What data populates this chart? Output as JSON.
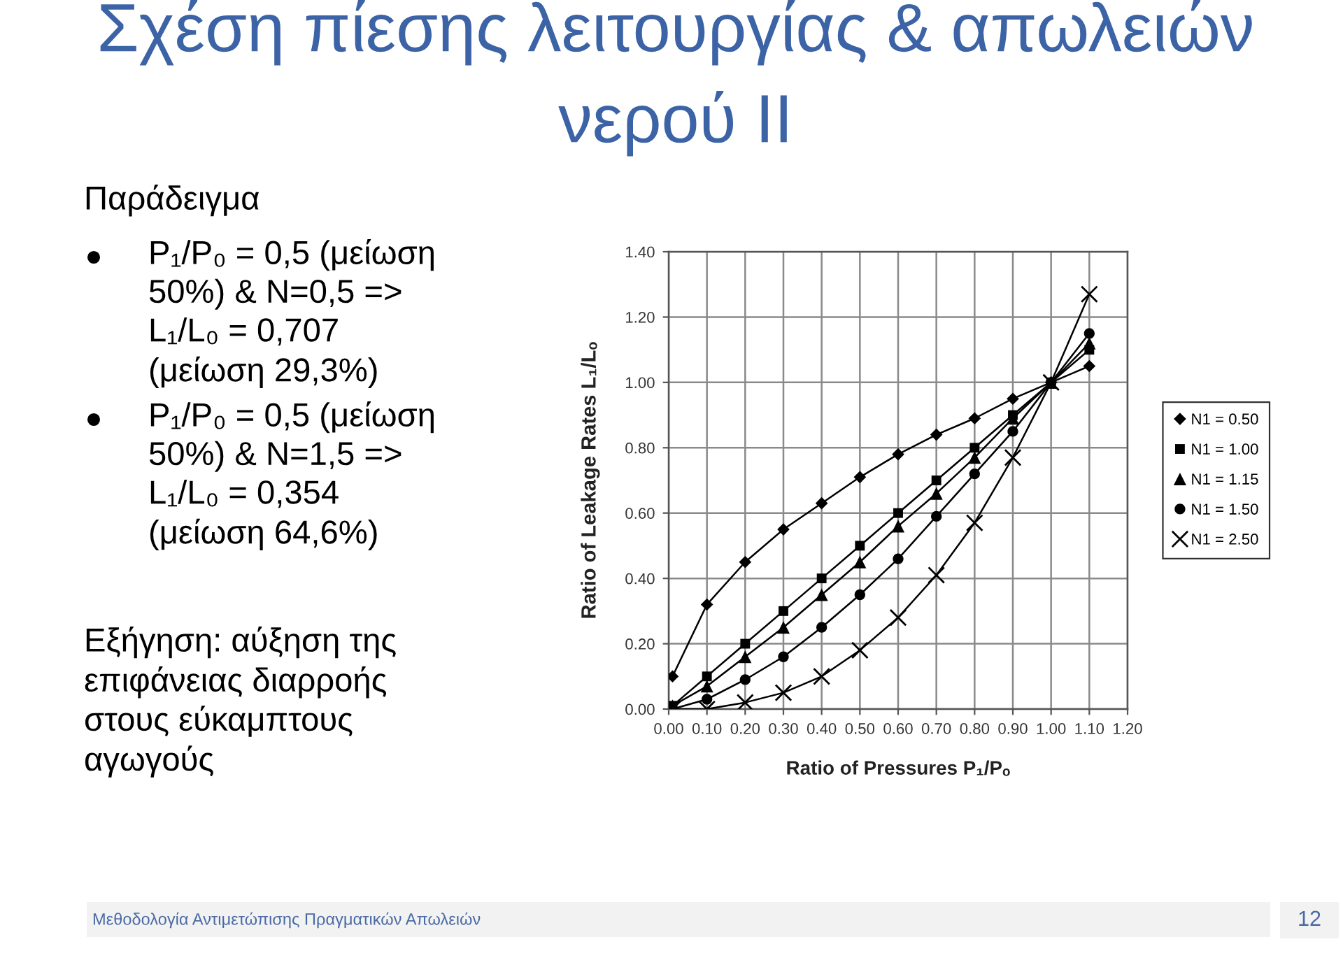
{
  "chart_data": {
    "type": "line",
    "title": "Σχέση πίεσης λειτουργίας & απωλειών νερού II",
    "xlabel": "Ratio of Pressures P₁/Pₒ",
    "ylabel": "Ratio of Leakage Rates L₁/Lₒ",
    "x": [
      0.01,
      0.1,
      0.2,
      0.3,
      0.4,
      0.5,
      0.6,
      0.7,
      0.8,
      0.9,
      1.0,
      1.1
    ],
    "series": [
      {
        "name": "N1 = 0.50",
        "color": "#000000",
        "marker": "diamond",
        "values": [
          0.1,
          0.32,
          0.45,
          0.55,
          0.63,
          0.71,
          0.78,
          0.84,
          0.89,
          0.95,
          1.0,
          1.05
        ]
      },
      {
        "name": "N1 = 1.00",
        "color": "#000000",
        "marker": "square",
        "values": [
          0.01,
          0.1,
          0.2,
          0.3,
          0.4,
          0.5,
          0.6,
          0.7,
          0.8,
          0.9,
          1.0,
          1.1
        ]
      },
      {
        "name": "N1 = 1.15",
        "color": "#000000",
        "marker": "triangle",
        "values": [
          0.01,
          0.07,
          0.16,
          0.25,
          0.35,
          0.45,
          0.56,
          0.66,
          0.77,
          0.89,
          1.0,
          1.12
        ]
      },
      {
        "name": "N1 = 1.50",
        "color": "#000000",
        "marker": "circle",
        "values": [
          0.0,
          0.03,
          0.09,
          0.16,
          0.25,
          0.35,
          0.46,
          0.59,
          0.72,
          0.85,
          1.0,
          1.15
        ]
      },
      {
        "name": "N1 = 2.50",
        "color": "#000000",
        "marker": "cross",
        "values": [
          0.0,
          0.0,
          0.02,
          0.05,
          0.1,
          0.18,
          0.28,
          0.41,
          0.57,
          0.77,
          1.0,
          1.27
        ]
      }
    ],
    "xlim": [
      0,
      1.2
    ],
    "xticks": [
      {
        "value": 0,
        "label": "0.00"
      },
      {
        "value": 0.1,
        "label": "0.10"
      },
      {
        "value": 0.2,
        "label": "0.20"
      },
      {
        "value": 0.3,
        "label": "0.30"
      },
      {
        "value": 0.4,
        "label": "0.40"
      },
      {
        "value": 0.5,
        "label": "0.50"
      },
      {
        "value": 0.6,
        "label": "0.60"
      },
      {
        "value": 0.7,
        "label": "0.70"
      },
      {
        "value": 0.8,
        "label": "0.80"
      },
      {
        "value": 0.9,
        "label": "0.90"
      },
      {
        "value": 1.0,
        "label": "1.00"
      },
      {
        "value": 1.1,
        "label": "1.10"
      },
      {
        "value": 1.2,
        "label": "1.20"
      }
    ],
    "ylim": [
      0,
      1.4
    ],
    "yticks": [
      {
        "value": 0,
        "label": "0.00"
      },
      {
        "value": 0.2,
        "label": "0.20"
      },
      {
        "value": 0.4,
        "label": "0.40"
      },
      {
        "value": 0.6,
        "label": "0.60"
      },
      {
        "value": 0.8,
        "label": "0.80"
      },
      {
        "value": 1.0,
        "label": "1.00"
      },
      {
        "value": 1.2,
        "label": "1.20"
      },
      {
        "value": 1.4,
        "label": "1.40"
      }
    ],
    "grid": true,
    "legend": "right",
    "line_style": "solid",
    "annotations": [
      "Παράδειγμα",
      "P₁/P₀ = 0,5 (μείωση 50%) & N=0,5 => L₁/L₀ = 0,707 (μείωση 29,3%)",
      "P₁/P₀ = 0,5 (μείωση 50%) & N=1,5 => L₁/L₀ = 0,354 (μείωση 64,6%)",
      "Εξήγηση: αύξηση της επιφάνειας διαρροής στους εύκαμπτους αγωγούς",
      "Μεθοδολογία Αντιμετώπισης Πραγματικών Απωλειών",
      "12"
    ]
  }
}
